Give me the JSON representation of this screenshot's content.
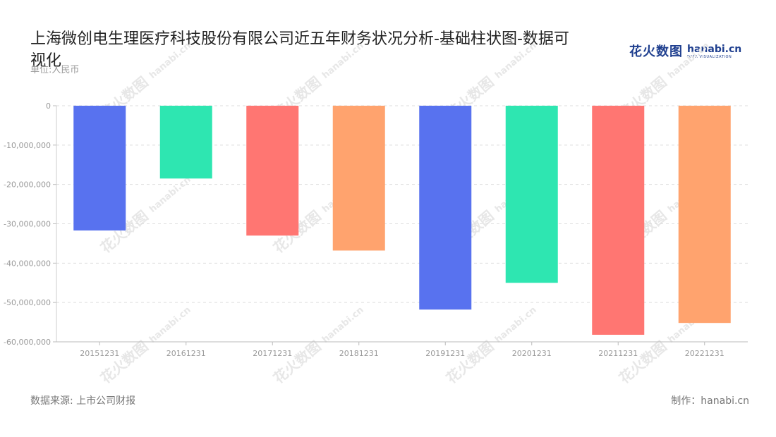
{
  "title": "上海微创电生理医疗科技股份有限公司近五年财务状况分析-基础柱状图-数据可视化",
  "unit_label": "单位:人民币",
  "logo": {
    "cn": "花火数图",
    "en": "hanabi.cn",
    "sub": "DATA VISUALIZATION"
  },
  "watermark": {
    "cn": "花火数图",
    "en": "hanabi.cn"
  },
  "footer": {
    "source": "数据来源: 上市公司财报",
    "credit": "制作：hanabi.cn"
  },
  "colors": [
    "#5872ef",
    "#2ee6b1",
    "#ff7672",
    "#ffa36e"
  ],
  "chart_data": {
    "type": "bar",
    "categories": [
      "20151231",
      "20161231",
      "20171231",
      "20181231",
      "20191231",
      "20201231",
      "20211231",
      "20221231"
    ],
    "values": [
      -31700000,
      -18500000,
      -33000000,
      -36800000,
      -51800000,
      -45000000,
      -58200000,
      -55200000
    ],
    "ylim": [
      -60000000,
      0
    ],
    "yticks": [
      0,
      -10000000,
      -20000000,
      -30000000,
      -40000000,
      -50000000,
      -60000000
    ],
    "ytick_labels": [
      "0",
      "-10,000,000",
      "-20,000,000",
      "-30,000,000",
      "-40,000,000",
      "-50,000,000",
      "-60,000,000"
    ],
    "grid": true,
    "legend": "none"
  }
}
